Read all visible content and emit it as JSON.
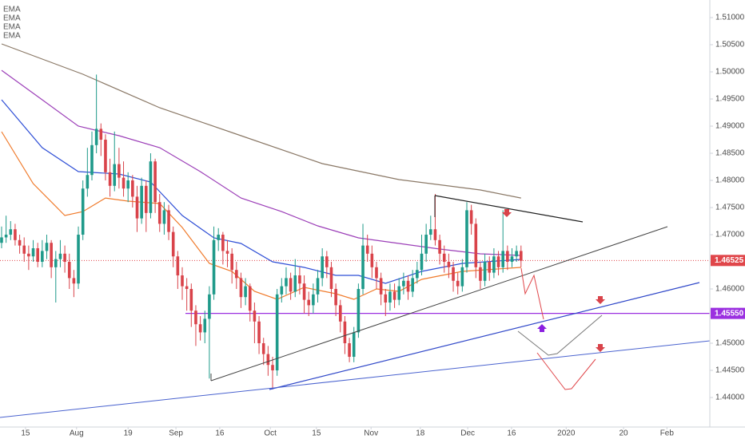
{
  "chart_data": {
    "type": "candlestick",
    "up_color": "#1f9a8a",
    "down_color": "#d9434a",
    "xlim": [
      -0.35,
      156.8
    ],
    "ylim": [
      1.43456,
      1.51324
    ],
    "grid": false,
    "xticks": [
      {
        "value": 5.3,
        "label": "15"
      },
      {
        "value": 16.6,
        "label": "Aug"
      },
      {
        "value": 28,
        "label": "19"
      },
      {
        "value": 38.6,
        "label": "Sep"
      },
      {
        "value": 48.3,
        "label": "16"
      },
      {
        "value": 59.5,
        "label": "Oct"
      },
      {
        "value": 69.7,
        "label": "15"
      },
      {
        "value": 81.8,
        "label": "Nov"
      },
      {
        "value": 92.7,
        "label": "18"
      },
      {
        "value": 103.2,
        "label": "Dec"
      },
      {
        "value": 112.9,
        "label": "16"
      },
      {
        "value": 125,
        "label": "2020"
      },
      {
        "value": 137.7,
        "label": "20"
      },
      {
        "value": 147.3,
        "label": "Feb"
      }
    ],
    "yticks": [
      {
        "value": 1.44,
        "label": "1.44000"
      },
      {
        "value": 1.445,
        "label": "1.44500"
      },
      {
        "value": 1.45,
        "label": "1.45000"
      },
      {
        "value": 1.455,
        "label": "1.45500"
      },
      {
        "value": 1.46,
        "label": "1.46000"
      },
      {
        "value": 1.465,
        "label": "1.46500"
      },
      {
        "value": 1.47,
        "label": "1.47000"
      },
      {
        "value": 1.475,
        "label": "1.47500"
      },
      {
        "value": 1.48,
        "label": "1.48000"
      },
      {
        "value": 1.485,
        "label": "1.48500"
      },
      {
        "value": 1.49,
        "label": "1.49000"
      },
      {
        "value": 1.495,
        "label": "1.49500"
      },
      {
        "value": 1.5,
        "label": "1.50000"
      },
      {
        "value": 1.505,
        "label": "1.50500"
      },
      {
        "value": 1.51,
        "label": "1.51000"
      }
    ],
    "price_lines": [
      {
        "value": 1.46525,
        "label": "1.46525",
        "color": "#e0464a",
        "style": "dotted"
      },
      {
        "value": 1.4555,
        "label": "1.45550",
        "color": "#9b30e0",
        "style": "solid"
      }
    ],
    "series": [
      {
        "name": "EMA",
        "color": "#f07b2c",
        "x": [
          0,
          7,
          14,
          18,
          23,
          28,
          35,
          40,
          46,
          51,
          56,
          61,
          67,
          74,
          78,
          83,
          88,
          93,
          102,
          115
        ],
        "values": [
          1.48897,
          1.47941,
          1.47353,
          1.47426,
          1.47676,
          1.47618,
          1.47574,
          1.47132,
          1.46471,
          1.46324,
          1.45956,
          1.45809,
          1.46029,
          1.45912,
          1.45809,
          1.46,
          1.45956,
          1.46176,
          1.46324,
          1.46397
        ]
      },
      {
        "name": "EMA",
        "color": "#2f4fd6",
        "x": [
          0,
          9,
          17,
          26,
          33,
          40,
          47,
          53,
          60,
          67,
          74,
          79,
          85,
          93,
          102,
          115
        ],
        "values": [
          1.49485,
          1.48603,
          1.48162,
          1.48118,
          1.47971,
          1.47353,
          1.46941,
          1.46838,
          1.465,
          1.46397,
          1.4625,
          1.4625,
          1.46103,
          1.46324,
          1.46471,
          1.46544
        ]
      },
      {
        "name": "EMA",
        "color": "#9c3fb8",
        "x": [
          0,
          9,
          17,
          26,
          35,
          44,
          53,
          62,
          70,
          79,
          88,
          97,
          106,
          115
        ],
        "values": [
          1.50029,
          1.49485,
          1.49,
          1.48824,
          1.48603,
          1.48162,
          1.47676,
          1.47426,
          1.47162,
          1.46941,
          1.46838,
          1.46735,
          1.46647,
          1.46618
        ]
      },
      {
        "name": "EMA",
        "color": "#8a7866",
        "x": [
          0,
          18,
          35,
          53,
          71,
          88,
          106,
          115
        ],
        "values": [
          1.50515,
          1.49956,
          1.49338,
          1.48824,
          1.48309,
          1.48015,
          1.47824,
          1.47676
        ]
      }
    ],
    "candles": [
      [
        1.4685,
        1.4715,
        1.4675,
        1.4695
      ],
      [
        1.4695,
        1.4735,
        1.4685,
        1.47
      ],
      [
        1.47,
        1.4725,
        1.469,
        1.471
      ],
      [
        1.471,
        1.472,
        1.468,
        1.469
      ],
      [
        1.469,
        1.47,
        1.4665,
        1.468
      ],
      [
        1.468,
        1.4695,
        1.465,
        1.4665
      ],
      [
        1.4665,
        1.468,
        1.4635,
        1.466
      ],
      [
        1.466,
        1.469,
        1.465,
        1.4675
      ],
      [
        1.4675,
        1.4685,
        1.464,
        1.465
      ],
      [
        1.465,
        1.469,
        1.464,
        1.467
      ],
      [
        1.467,
        1.47,
        1.4655,
        1.4685
      ],
      [
        1.4685,
        1.469,
        1.462,
        1.464
      ],
      [
        1.464,
        1.467,
        1.4575,
        1.4655
      ],
      [
        1.4655,
        1.469,
        1.464,
        1.4665
      ],
      [
        1.4665,
        1.468,
        1.463,
        1.465
      ],
      [
        1.465,
        1.4665,
        1.46,
        1.462
      ],
      [
        1.462,
        1.4635,
        1.4585,
        1.461
      ],
      [
        1.461,
        1.4715,
        1.46,
        1.47
      ],
      [
        1.47,
        1.48,
        1.469,
        1.4785
      ],
      [
        1.4785,
        1.486,
        1.477,
        1.481
      ],
      [
        1.481,
        1.489,
        1.48,
        1.4865
      ],
      [
        1.4865,
        1.4995,
        1.485,
        1.4895
      ],
      [
        1.4895,
        1.4905,
        1.4845,
        1.4875
      ],
      [
        1.4875,
        1.4885,
        1.48,
        1.4815
      ],
      [
        1.4815,
        1.484,
        1.477,
        1.479
      ],
      [
        1.479,
        1.489,
        1.478,
        1.483
      ],
      [
        1.483,
        1.486,
        1.4785,
        1.4805
      ],
      [
        1.4805,
        1.4835,
        1.477,
        1.4785
      ],
      [
        1.4785,
        1.4815,
        1.476,
        1.48
      ],
      [
        1.48,
        1.481,
        1.475,
        1.477
      ],
      [
        1.477,
        1.479,
        1.4705,
        1.473
      ],
      [
        1.473,
        1.4805,
        1.472,
        1.479
      ],
      [
        1.479,
        1.48,
        1.4705,
        1.474
      ],
      [
        1.474,
        1.485,
        1.473,
        1.4835
      ],
      [
        1.4835,
        1.484,
        1.474,
        1.476
      ],
      [
        1.476,
        1.4775,
        1.4705,
        1.472
      ],
      [
        1.472,
        1.476,
        1.47,
        1.4745
      ],
      [
        1.4745,
        1.4755,
        1.469,
        1.4705
      ],
      [
        1.4705,
        1.4715,
        1.464,
        1.466
      ],
      [
        1.466,
        1.467,
        1.46,
        1.4625
      ],
      [
        1.4625,
        1.464,
        1.458,
        1.4605
      ],
      [
        1.4605,
        1.462,
        1.456,
        1.46
      ],
      [
        1.46,
        1.461,
        1.453,
        1.456
      ],
      [
        1.456,
        1.457,
        1.4495,
        1.4535
      ],
      [
        1.4535,
        1.455,
        1.4505,
        1.452
      ],
      [
        1.452,
        1.456,
        1.45,
        1.4545
      ],
      [
        1.4545,
        1.4605,
        1.4435,
        1.459
      ],
      [
        1.459,
        1.4715,
        1.458,
        1.469
      ],
      [
        1.469,
        1.4712,
        1.467,
        1.47
      ],
      [
        1.47,
        1.4705,
        1.4645,
        1.467
      ],
      [
        1.467,
        1.469,
        1.464,
        1.4665
      ],
      [
        1.4665,
        1.4675,
        1.461,
        1.4635
      ],
      [
        1.4635,
        1.465,
        1.46,
        1.462
      ],
      [
        1.462,
        1.463,
        1.4565,
        1.4585
      ],
      [
        1.4585,
        1.462,
        1.457,
        1.4605
      ],
      [
        1.4605,
        1.461,
        1.454,
        1.456
      ],
      [
        1.456,
        1.4575,
        1.45,
        1.454
      ],
      [
        1.454,
        1.455,
        1.448,
        1.45
      ],
      [
        1.45,
        1.451,
        1.446,
        1.448
      ],
      [
        1.448,
        1.4495,
        1.444,
        1.446
      ],
      [
        1.446,
        1.4475,
        1.4415,
        1.445
      ],
      [
        1.445,
        1.46,
        1.444,
        1.459
      ],
      [
        1.459,
        1.462,
        1.4575,
        1.4605
      ],
      [
        1.4605,
        1.464,
        1.459,
        1.462
      ],
      [
        1.462,
        1.463,
        1.458,
        1.4595
      ],
      [
        1.4595,
        1.4655,
        1.4585,
        1.4625
      ],
      [
        1.4625,
        1.464,
        1.459,
        1.461
      ],
      [
        1.461,
        1.4625,
        1.4555,
        1.458
      ],
      [
        1.458,
        1.4595,
        1.455,
        1.457
      ],
      [
        1.457,
        1.461,
        1.4555,
        1.459
      ],
      [
        1.459,
        1.4635,
        1.4575,
        1.462
      ],
      [
        1.462,
        1.4675,
        1.4605,
        1.466
      ],
      [
        1.466,
        1.467,
        1.462,
        1.464
      ],
      [
        1.464,
        1.465,
        1.4585,
        1.46
      ],
      [
        1.46,
        1.461,
        1.455,
        1.457
      ],
      [
        1.457,
        1.458,
        1.452,
        1.454
      ],
      [
        1.454,
        1.455,
        1.448,
        1.45
      ],
      [
        1.45,
        1.451,
        1.4465,
        1.4475
      ],
      [
        1.4475,
        1.453,
        1.4465,
        1.452
      ],
      [
        1.452,
        1.461,
        1.451,
        1.46
      ],
      [
        1.46,
        1.472,
        1.459,
        1.468
      ],
      [
        1.468,
        1.47,
        1.465,
        1.4665
      ],
      [
        1.4665,
        1.468,
        1.462,
        1.464
      ],
      [
        1.464,
        1.465,
        1.46,
        1.462
      ],
      [
        1.462,
        1.463,
        1.457,
        1.459
      ],
      [
        1.459,
        1.46,
        1.455,
        1.4575
      ],
      [
        1.4575,
        1.461,
        1.456,
        1.4595
      ],
      [
        1.4595,
        1.461,
        1.4565,
        1.458
      ],
      [
        1.458,
        1.462,
        1.457,
        1.4605
      ],
      [
        1.4605,
        1.463,
        1.459,
        1.4615
      ],
      [
        1.4615,
        1.4625,
        1.458,
        1.4595
      ],
      [
        1.4595,
        1.4635,
        1.4585,
        1.462
      ],
      [
        1.462,
        1.465,
        1.461,
        1.4635
      ],
      [
        1.4635,
        1.47,
        1.4625,
        1.4665
      ],
      [
        1.4665,
        1.472,
        1.465,
        1.47
      ],
      [
        1.47,
        1.4735,
        1.469,
        1.471
      ],
      [
        1.471,
        1.4775,
        1.468,
        1.469
      ],
      [
        1.469,
        1.47,
        1.4645,
        1.4665
      ],
      [
        1.4665,
        1.468,
        1.463,
        1.465
      ],
      [
        1.465,
        1.4665,
        1.462,
        1.464
      ],
      [
        1.464,
        1.465,
        1.4595,
        1.4615
      ],
      [
        1.4615,
        1.463,
        1.459,
        1.4605
      ],
      [
        1.4605,
        1.4655,
        1.4595,
        1.464
      ],
      [
        1.464,
        1.476,
        1.463,
        1.4745
      ],
      [
        1.4745,
        1.4755,
        1.47,
        1.472
      ],
      [
        1.472,
        1.473,
        1.462,
        1.464
      ],
      [
        1.464,
        1.465,
        1.46,
        1.4615
      ],
      [
        1.4615,
        1.4665,
        1.4605,
        1.465
      ],
      [
        1.465,
        1.466,
        1.4615,
        1.463
      ],
      [
        1.463,
        1.4675,
        1.462,
        1.466
      ],
      [
        1.466,
        1.467,
        1.4625,
        1.464
      ],
      [
        1.464,
        1.4745,
        1.463,
        1.467
      ],
      [
        1.467,
        1.468,
        1.4635,
        1.465
      ],
      [
        1.465,
        1.4675,
        1.464,
        1.466
      ],
      [
        1.466,
        1.468,
        1.465,
        1.467
      ],
      [
        1.467,
        1.468,
        1.464,
        1.4652
      ]
    ]
  }
}
